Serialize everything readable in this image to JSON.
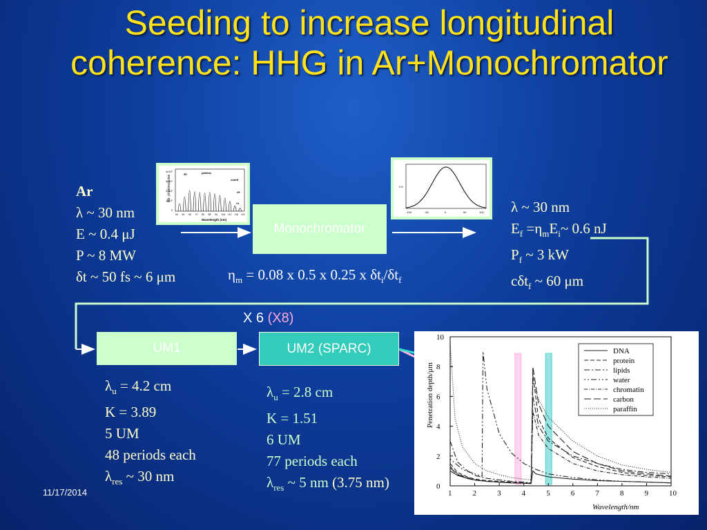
{
  "title": "Seeding to increase longitudinal coherence: HHG in Ar+Monochromator",
  "left_params": {
    "heading": "Ar",
    "l1": "λ ~ 30 nm",
    "l2": "E ~ 0.4 μJ",
    "l3": "P ~ 8  MW",
    "l4": "δt ~ 50 fs ~ 6 μm"
  },
  "monochromator_label": "Monochromator",
  "eta": {
    "sym": "η",
    "sub1": "m",
    "mid": " = 0.08 x 0.5 x 0.25 x δt",
    "sub2": "i",
    "slash": "/δt",
    "sub3": "f"
  },
  "right_params": {
    "l1": "λ ~ 30 nm",
    "l2a": "E",
    "l2s": "f",
    "l2b": " =η",
    "l2s2": "m",
    "l2c": "E",
    "l2s3": "i",
    "l2d": "~ 0.6 nJ",
    "l3a": "P",
    "l3s": "f",
    "l3b": " ~ 3  kW",
    "l4a": "cδt",
    "l4s": "f",
    "l4b": " ~ 60 μm"
  },
  "repeat": {
    "main": "X 6 ",
    "alt": "(X8)"
  },
  "um1": {
    "label": "UM1",
    "l1a": "λ",
    "l1s": "u",
    "l1b": " = 4.2 cm",
    "l2": "K = 3.89",
    "l3": "5 UM",
    "l4": "48 periods each",
    "l5a": "λ",
    "l5s": "res",
    "l5b": " ~ 30 nm"
  },
  "um2": {
    "label": "UM2 (SPARC)",
    "l1a": "λ",
    "l1s": "u",
    "l1b": " = 2.8 cm",
    "l2": "K = 1.51",
    "l3": "6 UM",
    "l4": "77 periods each",
    "l5a": "λ",
    "l5s": "res",
    "l5b": " ~ 5 nm ",
    "l5c": "(3.75 nm)"
  },
  "date": "11/17/2014",
  "hhg_plot": {
    "ylabel": "Nb. photons/pulse",
    "xlabel": "Wavelength (nm)",
    "y_ticks": [
      "4x10⁷",
      "3x10⁷",
      "2x10⁷",
      "1x10⁷",
      "0"
    ],
    "x_ticks": [
      "54",
      "60",
      "66",
      "72",
      "80",
      "88",
      "96",
      "104",
      "112",
      "116",
      "122"
    ],
    "ann": [
      "plateau",
      "cutoff",
      "35",
      "29",
      "21"
    ]
  },
  "gauss_plot": {
    "y_ticks": [
      "0.5"
    ],
    "x_ticks": [
      "-100",
      "-50",
      "0",
      "50",
      "100"
    ]
  },
  "chart_data": {
    "type": "line",
    "xlabel": "Wavelength/nm",
    "ylabel": "Penetration depth/μm",
    "xlim": [
      1,
      10
    ],
    "ylim": [
      0,
      10
    ],
    "x_ticks": [
      "1",
      "2",
      "3",
      "4",
      "5",
      "6",
      "7",
      "8",
      "9",
      "10"
    ],
    "y_ticks": [
      "0",
      "2",
      "4",
      "6",
      "8",
      "10"
    ],
    "legend_position": "top-right",
    "legend": [
      "DNA",
      "protein",
      "lipids",
      "water",
      "chromatin",
      "carbon",
      "paraffin"
    ],
    "series": [
      {
        "name": "DNA",
        "x": [
          1,
          1.3,
          1.7,
          2,
          2.5,
          3,
          3.5,
          4,
          4.3,
          4.37,
          4.5,
          5,
          6,
          7,
          8,
          9,
          10
        ],
        "y": [
          1.0,
          0.7,
          0.5,
          0.4,
          0.3,
          0.25,
          0.2,
          0.18,
          0.16,
          1.0,
          0.8,
          0.6,
          0.45,
          0.35,
          0.3,
          0.25,
          0.2
        ]
      },
      {
        "name": "protein",
        "x": [
          1,
          1.3,
          1.7,
          2,
          2.5,
          3,
          3.5,
          4,
          4.3,
          4.37,
          4.6,
          5,
          6,
          7,
          8,
          9,
          10
        ],
        "y": [
          1.5,
          0.9,
          0.6,
          0.45,
          0.35,
          0.3,
          0.25,
          0.2,
          0.18,
          7.5,
          4.5,
          3.2,
          1.9,
          1.3,
          0.9,
          0.7,
          0.6
        ]
      },
      {
        "name": "lipids",
        "x": [
          1,
          1.3,
          1.7,
          2,
          2.5,
          3,
          3.5,
          4,
          4.3,
          4.37,
          4.6,
          5,
          6,
          7,
          8,
          9,
          10
        ],
        "y": [
          3.0,
          1.6,
          1.0,
          0.7,
          0.5,
          0.4,
          0.3,
          0.25,
          0.2,
          6.0,
          4.0,
          3.0,
          2.0,
          1.5,
          1.1,
          0.9,
          0.8
        ]
      },
      {
        "name": "water",
        "x": [
          1,
          1.5,
          2,
          2.3,
          2.34,
          2.5,
          3,
          3.5,
          4,
          4.5,
          5,
          6,
          7,
          8,
          9,
          10
        ],
        "y": [
          1.8,
          1.1,
          0.8,
          0.65,
          9.0,
          6.5,
          3.5,
          2.2,
          1.5,
          1.1,
          0.8,
          0.55,
          0.4,
          0.3,
          0.25,
          0.2
        ]
      },
      {
        "name": "chromatin",
        "x": [
          1,
          1.3,
          1.7,
          2,
          2.5,
          3,
          3.5,
          4,
          4.3,
          4.37,
          4.6,
          5,
          6,
          7,
          8,
          9,
          10
        ],
        "y": [
          1.3,
          0.8,
          0.55,
          0.4,
          0.3,
          0.25,
          0.2,
          0.18,
          0.16,
          5.0,
          3.4,
          2.5,
          1.5,
          1.0,
          0.75,
          0.6,
          0.5
        ]
      },
      {
        "name": "carbon",
        "x": [
          1,
          1.3,
          1.7,
          2,
          2.5,
          3,
          3.5,
          4,
          4.3,
          4.37,
          4.6,
          5,
          6,
          7,
          8,
          9,
          10
        ],
        "y": [
          1.2,
          0.75,
          0.5,
          0.38,
          0.3,
          0.24,
          0.2,
          0.17,
          0.15,
          8.0,
          5.5,
          4.0,
          2.3,
          1.5,
          1.0,
          0.8,
          0.65
        ]
      },
      {
        "name": "paraffin",
        "x": [
          1,
          1.2,
          1.5,
          2,
          2.5,
          3,
          3.5,
          4,
          4.3,
          4.37,
          4.6,
          5,
          6,
          7,
          8,
          9,
          10
        ],
        "y": [
          9.6,
          4.5,
          2.6,
          1.5,
          1.0,
          0.75,
          0.55,
          0.45,
          0.4,
          7.0,
          5.8,
          4.6,
          3.0,
          2.0,
          1.4,
          1.1,
          0.9
        ]
      }
    ],
    "markers": [
      {
        "x": 3.75,
        "color": "#ffccee"
      },
      {
        "x": 5.0,
        "color": "#88e0dd"
      }
    ]
  },
  "colors": {
    "title": "#ffe21a",
    "text": "#ffffcc",
    "green_box": "#ccffcc",
    "cyan_box": "#33ccbb",
    "pink": "#ffaadd"
  }
}
